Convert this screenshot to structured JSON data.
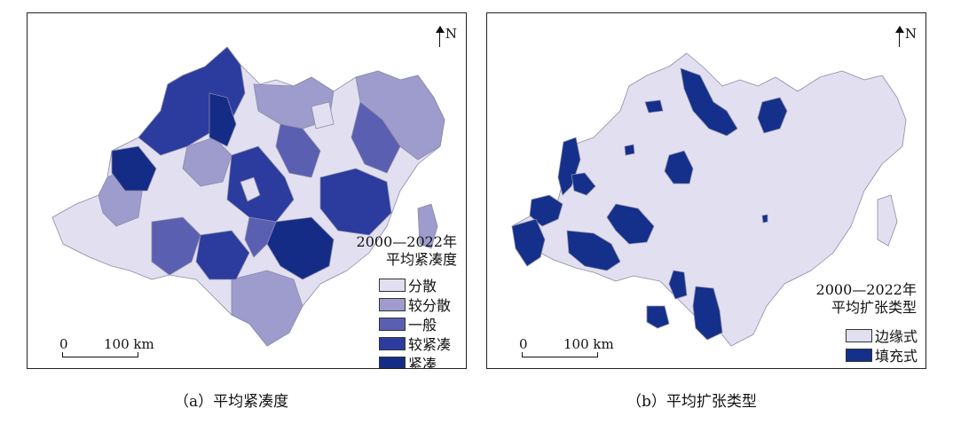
{
  "panels": [
    {
      "north_label": "N",
      "scale": {
        "zero": "0",
        "distance": "100 km"
      },
      "legend_title": [
        "2000—2022年",
        "平均紧凑度"
      ],
      "legend": [
        {
          "label": "分散",
          "color": "#e2e0f0"
        },
        {
          "label": "较分散",
          "color": "#9d9ccd"
        },
        {
          "label": "一般",
          "color": "#5b5fb2"
        },
        {
          "label": "较紧凑",
          "color": "#2c3b9e"
        },
        {
          "label": "紧凑",
          "color": "#152c86"
        }
      ],
      "caption": "（a）平均紧凑度"
    },
    {
      "north_label": "N",
      "scale": {
        "zero": "0",
        "distance": "100 km"
      },
      "legend_title": [
        "2000—2022年",
        "平均扩张类型"
      ],
      "legend": [
        {
          "label": "边缘式",
          "color": "#e2e0f0"
        },
        {
          "label": "填充式",
          "color": "#15308a"
        }
      ],
      "caption": "（b）平均扩张类型"
    }
  ]
}
